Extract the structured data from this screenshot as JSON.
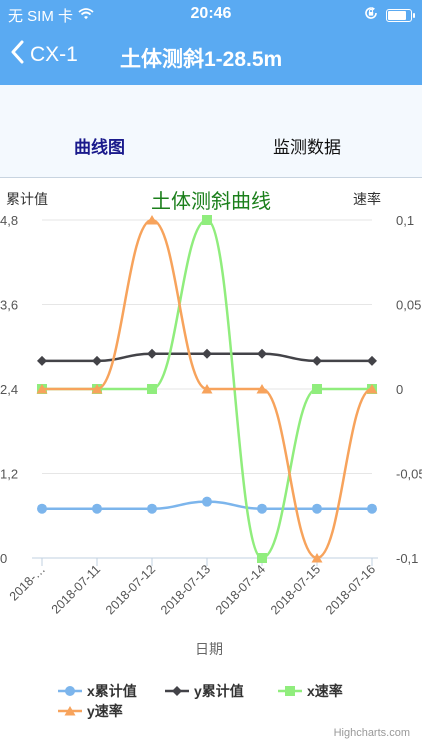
{
  "status_bar": {
    "carrier": "无 SIM 卡",
    "time": "20:46",
    "battery_level": 0.9,
    "icons": [
      "wifi-icon",
      "orientation-lock-icon",
      "battery-icon"
    ]
  },
  "nav": {
    "back_label": "CX-1",
    "title": "土体测斜1-28.5m",
    "back_icon": "chevron-left-icon"
  },
  "tabs": [
    {
      "label": "曲线图",
      "active": true
    },
    {
      "label": "监测数据",
      "active": false
    }
  ],
  "colors": {
    "accent": "#5aaaf2",
    "title_green": "#1b7f1b"
  },
  "chart_data": {
    "type": "line",
    "title": "土体测斜曲线",
    "xlabel": "日期",
    "ylabel_left": "累计值",
    "ylabel_right": "速率",
    "categories": [
      "2018-…",
      "2018-07-11",
      "2018-07-12",
      "2018-07-13",
      "2018-07-14",
      "2018-07-15",
      "2018-07-16"
    ],
    "y_left_ticks": [
      "0",
      "1,2",
      "2,4",
      "3,6",
      "4,8"
    ],
    "y_left_lim": [
      0,
      4.8
    ],
    "y_right_ticks": [
      "-0,1",
      "-0,05",
      "0",
      "0,05",
      "0,1"
    ],
    "y_right_lim": [
      -0.1,
      0.1
    ],
    "grid": true,
    "legend_position": "bottom",
    "credits": "Highcharts.com",
    "series": [
      {
        "name": "x累计值",
        "axis": "left",
        "color": "#7cb5ec",
        "marker": "circle",
        "values": [
          0.7,
          0.7,
          0.7,
          0.8,
          0.7,
          0.7,
          0.7
        ]
      },
      {
        "name": "y累计值",
        "axis": "left",
        "color": "#434348",
        "marker": "diamond",
        "values": [
          2.8,
          2.8,
          2.9,
          2.9,
          2.9,
          2.8,
          2.8
        ]
      },
      {
        "name": "x速率",
        "axis": "right",
        "color": "#90ed7d",
        "marker": "square",
        "values": [
          0,
          0,
          0,
          0.1,
          -0.1,
          0,
          0
        ]
      },
      {
        "name": "y速率",
        "axis": "right",
        "color": "#f7a35c",
        "marker": "triangle",
        "values": [
          0,
          0,
          0.1,
          0,
          0,
          -0.1,
          0
        ]
      }
    ]
  }
}
